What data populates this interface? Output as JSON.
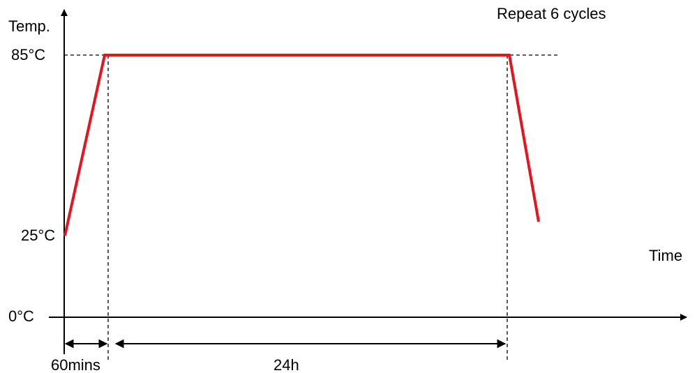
{
  "title_note": "Repeat 6 cycles",
  "axes": {
    "y_label": "Temp.",
    "x_label": "Time"
  },
  "temperature_levels": {
    "high": "85°C",
    "start": "25°C",
    "zero": "0°C"
  },
  "durations": {
    "ramp": "60mins",
    "dwell": "24h"
  },
  "colors": {
    "profile_line": "#e8141b",
    "axis": "#000000"
  }
}
